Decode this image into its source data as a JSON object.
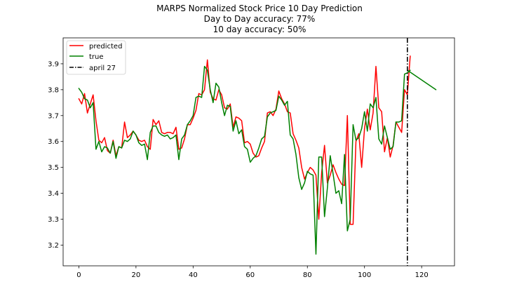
{
  "chart_data": {
    "type": "line",
    "title": "MARPS Normalized Stock Price 10 Day Prediction",
    "subtitle_lines": [
      "Day to Day accuracy: 77%",
      "10 day accuracy: 50%"
    ],
    "xlabel": "",
    "ylabel": "",
    "xlim": [
      -5.5,
      131.5
    ],
    "ylim": [
      3.12,
      4.0
    ],
    "x_ticks": [
      0,
      20,
      40,
      60,
      80,
      100,
      120
    ],
    "y_ticks": [
      3.2,
      3.3,
      3.4,
      3.5,
      3.6,
      3.7,
      3.8,
      3.9
    ],
    "x_tick_labels": [
      "0",
      "20",
      "40",
      "60",
      "80",
      "100",
      "120"
    ],
    "y_tick_labels": [
      "3.2",
      "3.3",
      "3.4",
      "3.5",
      "3.6",
      "3.7",
      "3.8",
      "3.9"
    ],
    "grid": false,
    "legend_position": "top-left",
    "series": [
      {
        "name": "predicted",
        "color": "#ff0000",
        "style": "solid",
        "x_start": 0,
        "values": [
          3.765,
          3.745,
          3.785,
          3.71,
          3.745,
          3.78,
          3.68,
          3.605,
          3.595,
          3.615,
          3.565,
          3.555,
          3.605,
          3.545,
          3.58,
          3.575,
          3.675,
          3.615,
          3.625,
          3.64,
          3.625,
          3.605,
          3.6,
          3.605,
          3.58,
          3.57,
          3.685,
          3.665,
          3.68,
          3.635,
          3.63,
          3.635,
          3.635,
          3.63,
          3.655,
          3.57,
          3.575,
          3.61,
          3.665,
          3.665,
          3.69,
          3.72,
          3.785,
          3.78,
          3.8,
          3.915,
          3.79,
          3.765,
          3.76,
          3.8,
          3.78,
          3.73,
          3.725,
          3.745,
          3.655,
          3.695,
          3.69,
          3.68,
          3.595,
          3.6,
          3.59,
          3.555,
          3.54,
          3.545,
          3.575,
          3.6,
          3.71,
          3.715,
          3.7,
          3.725,
          3.795,
          3.765,
          3.745,
          3.715,
          3.71,
          3.63,
          3.605,
          3.575,
          3.5,
          3.455,
          3.48,
          3.5,
          3.49,
          3.47,
          3.3,
          3.48,
          3.585,
          3.44,
          3.47,
          3.51,
          3.48,
          3.455,
          3.435,
          3.43,
          3.7,
          3.28,
          3.28,
          3.6,
          3.63,
          3.5,
          3.65,
          3.725,
          3.645,
          3.71,
          3.89,
          3.73,
          3.715,
          3.56,
          3.615,
          3.54,
          3.585,
          3.675,
          3.655,
          3.635,
          3.8,
          3.78,
          3.93
        ]
      },
      {
        "name": "true",
        "color": "#008000",
        "style": "solid",
        "x_start": 0,
        "values": [
          3.805,
          3.79,
          3.765,
          3.76,
          3.73,
          3.75,
          3.57,
          3.6,
          3.56,
          3.58,
          3.575,
          3.555,
          3.6,
          3.535,
          3.58,
          3.575,
          3.605,
          3.6,
          3.61,
          3.64,
          3.625,
          3.595,
          3.585,
          3.59,
          3.53,
          3.635,
          3.66,
          3.66,
          3.635,
          3.625,
          3.62,
          3.625,
          3.61,
          3.615,
          3.625,
          3.53,
          3.61,
          3.625,
          3.665,
          3.68,
          3.7,
          3.77,
          3.775,
          3.77,
          3.89,
          3.875,
          3.8,
          3.75,
          3.825,
          3.81,
          3.75,
          3.7,
          3.74,
          3.735,
          3.64,
          3.68,
          3.63,
          3.645,
          3.58,
          3.57,
          3.52,
          3.535,
          3.545,
          3.575,
          3.61,
          3.62,
          3.695,
          3.71,
          3.715,
          3.72,
          3.775,
          3.76,
          3.74,
          3.755,
          3.625,
          3.61,
          3.55,
          3.46,
          3.415,
          3.44,
          3.485,
          3.475,
          3.47,
          3.165,
          3.54,
          3.54,
          3.31,
          3.42,
          3.545,
          3.475,
          3.4,
          3.41,
          3.36,
          3.55,
          3.255,
          3.3,
          3.665,
          3.605,
          3.615,
          3.65,
          3.715,
          3.64,
          3.745,
          3.73,
          3.77,
          3.61,
          3.59,
          3.66,
          3.615,
          3.57,
          3.58,
          3.675,
          3.675,
          3.68,
          3.86,
          3.865,
          3.875
        ]
      },
      {
        "name": "true_forecast",
        "color": "#008000",
        "style": "solid",
        "x": [
          115,
          125
        ],
        "values": [
          3.875,
          3.8
        ]
      }
    ],
    "vline": {
      "name": "april 27",
      "x": 115,
      "color": "#000000",
      "style": "dashdot"
    },
    "legend": [
      {
        "label": "predicted",
        "color": "#ff0000",
        "style": "solid"
      },
      {
        "label": "true",
        "color": "#008000",
        "style": "solid"
      },
      {
        "label": "april 27",
        "color": "#000000",
        "style": "dashdot"
      }
    ]
  }
}
